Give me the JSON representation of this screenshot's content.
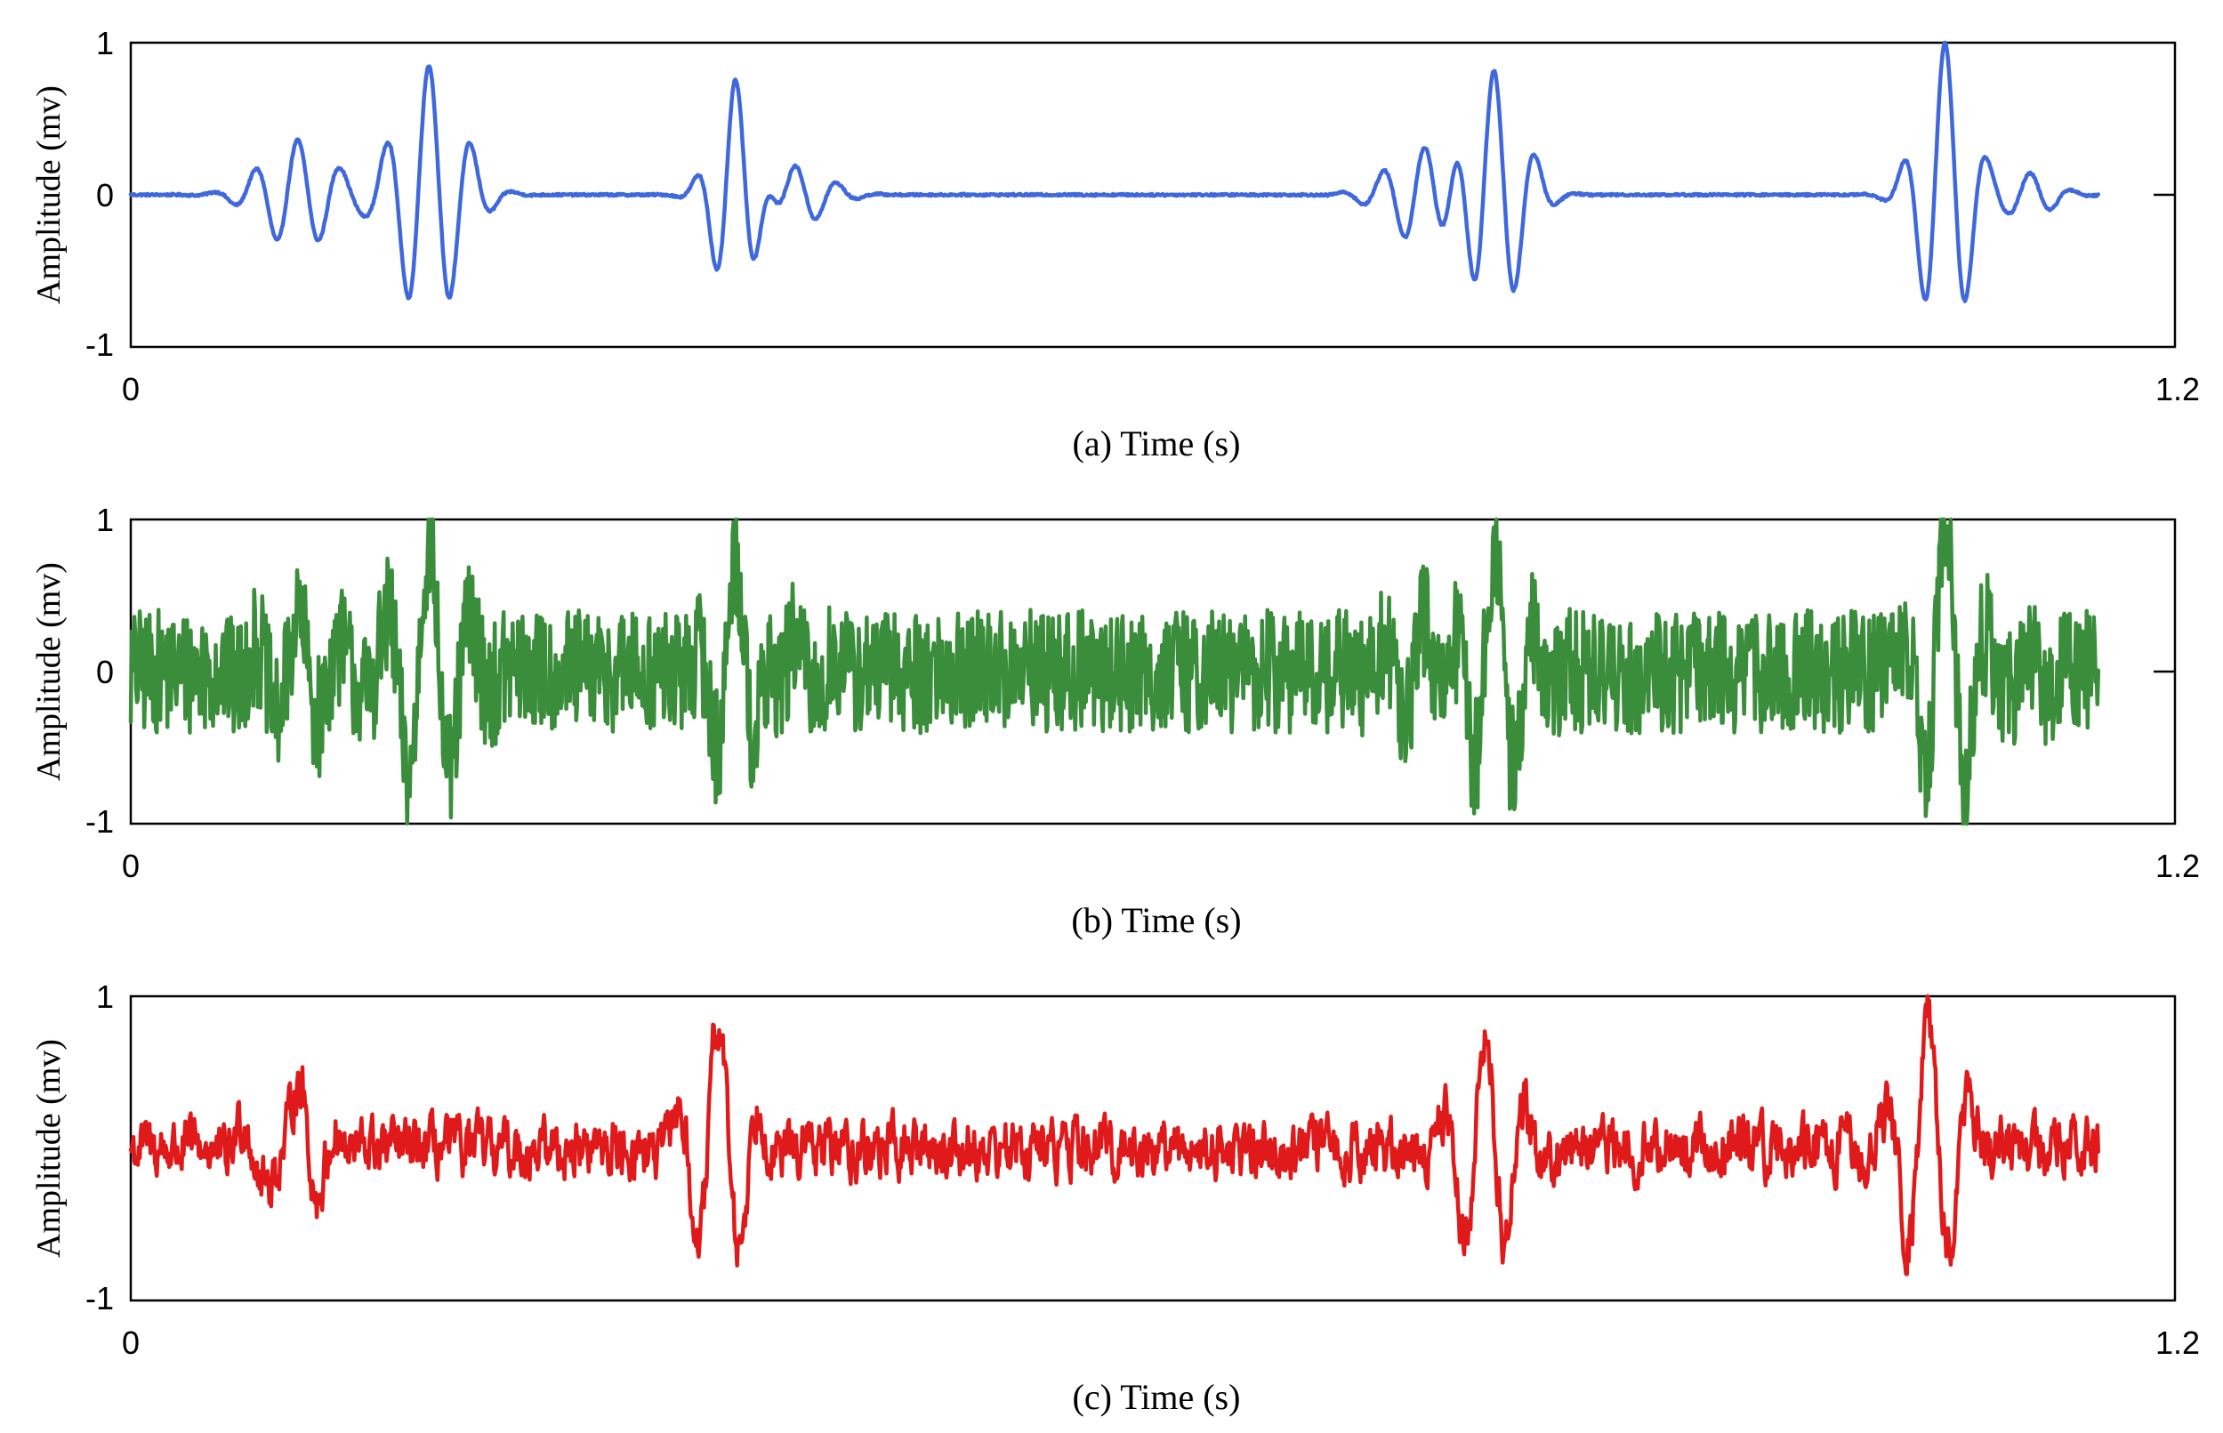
{
  "chart_data": [
    {
      "type": "line",
      "xlabel": "(a) Time (s)",
      "ylabel": "Amplitude (mv)",
      "xlim": [
        0,
        1.2
      ],
      "ylim": [
        -1,
        1
      ],
      "x_ticks": [
        "0",
        "1.2"
      ],
      "y_ticks": [
        "-1",
        "0",
        "1"
      ],
      "grid": false,
      "legend": "none",
      "color": "#3f68dd",
      "signal_duration": 1.155,
      "noise_level": 0.004,
      "series": [
        {
          "bursts": [
            {
              "t": 0.098,
              "amp": 0.36,
              "freq": 40,
              "width": 0.02
            },
            {
              "t": 0.175,
              "amp": 0.85,
              "freq": 40,
              "width": 0.018
            },
            {
              "t": 0.355,
              "amp": 0.78,
              "freq": 42,
              "width": 0.012
            },
            {
              "t": 0.39,
              "amp": 0.2,
              "freq": 40,
              "width": 0.018
            },
            {
              "t": 0.76,
              "amp": 0.34,
              "freq": 40,
              "width": 0.02
            },
            {
              "t": 0.8,
              "amp": 0.85,
              "freq": 40,
              "width": 0.016
            },
            {
              "t": 1.065,
              "amp": 1.0,
              "freq": 40,
              "width": 0.014
            },
            {
              "t": 1.115,
              "amp": 0.14,
              "freq": 40,
              "width": 0.014
            }
          ]
        }
      ]
    },
    {
      "type": "line",
      "xlabel": "(b) Time (s)",
      "ylabel": "Amplitude (mv)",
      "xlim": [
        0,
        1.2
      ],
      "ylim": [
        -1,
        1
      ],
      "x_ticks": [
        "0",
        "1.2"
      ],
      "y_ticks": [
        "-1",
        "0",
        "1"
      ],
      "grid": false,
      "legend": "none",
      "color": "#3a8d3a",
      "signal_duration": 1.155,
      "noise_level": 0.24,
      "series": [
        {
          "bursts": [
            {
              "t": 0.098,
              "amp": 0.36,
              "freq": 40,
              "width": 0.02
            },
            {
              "t": 0.175,
              "amp": 0.85,
              "freq": 40,
              "width": 0.018
            },
            {
              "t": 0.355,
              "amp": 0.78,
              "freq": 42,
              "width": 0.012
            },
            {
              "t": 0.39,
              "amp": 0.2,
              "freq": 40,
              "width": 0.018
            },
            {
              "t": 0.76,
              "amp": 0.34,
              "freq": 40,
              "width": 0.02
            },
            {
              "t": 0.8,
              "amp": 0.85,
              "freq": 40,
              "width": 0.016
            },
            {
              "t": 1.065,
              "amp": 1.0,
              "freq": 40,
              "width": 0.014
            },
            {
              "t": 1.115,
              "amp": 0.14,
              "freq": 40,
              "width": 0.014
            }
          ]
        }
      ]
    },
    {
      "type": "line",
      "xlabel": "(c) Time (s)",
      "ylabel": "Amplitude (mv)",
      "xlim": [
        0,
        1.2
      ],
      "ylim": [
        -1,
        1
      ],
      "x_ticks": [
        "0",
        "1.2"
      ],
      "y_ticks": [
        "-1",
        "1"
      ],
      "grid": false,
      "legend": "none",
      "color": "#e01a1a",
      "signal_duration": 1.155,
      "noise_level": 0.09,
      "series": [
        {
          "bursts": [
            {
              "t": 0.09,
              "amp": 0.4,
              "freq": 40,
              "width": 0.02
            },
            {
              "t": 0.1,
              "amp": 0.7,
              "freq": 40,
              "width": 0.012
            },
            {
              "t": 0.345,
              "amp": 0.85,
              "freq": 40,
              "width": 0.016
            },
            {
              "t": 0.795,
              "amp": 0.8,
              "freq": 40,
              "width": 0.016
            },
            {
              "t": 1.055,
              "amp": 0.85,
              "freq": 40,
              "width": 0.016
            }
          ]
        }
      ]
    }
  ]
}
